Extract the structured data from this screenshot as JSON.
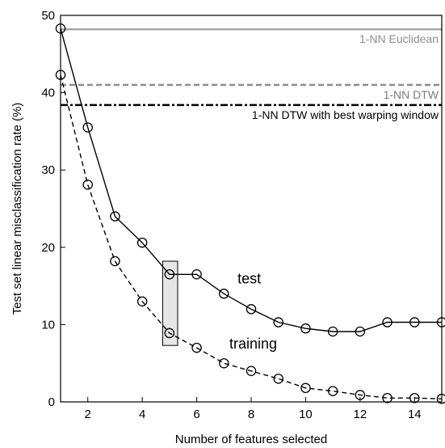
{
  "chart_data": {
    "type": "line",
    "xlabel": "Number of features selected",
    "ylabel": "Test set linear misclassification rate (%)",
    "xlim": [
      1,
      15
    ],
    "ylim": [
      0,
      50
    ],
    "xticks": [
      2,
      4,
      6,
      8,
      10,
      12,
      14
    ],
    "yticks": [
      0,
      10,
      20,
      30,
      40,
      50
    ],
    "grid": false,
    "series": [
      {
        "name": "test",
        "style": "solid",
        "marker": "open-circle",
        "color": "#000000",
        "x": [
          1,
          2,
          3,
          4,
          5,
          6,
          7,
          8,
          9,
          10,
          11,
          12,
          13,
          14,
          15
        ],
        "y": [
          48.3,
          35.5,
          24.0,
          20.6,
          16.5,
          16.5,
          14.0,
          12.0,
          10.3,
          9.5,
          9.1,
          9.1,
          10.3,
          10.3,
          10.3
        ]
      },
      {
        "name": "training",
        "style": "dashed",
        "marker": "open-circle",
        "color": "#000000",
        "x": [
          1,
          2,
          3,
          4,
          5,
          6,
          7,
          8,
          9,
          10,
          11,
          12,
          13,
          14,
          15
        ],
        "y": [
          42.3,
          28.1,
          18.2,
          13.0,
          8.9,
          7.0,
          5.0,
          4.0,
          3.0,
          1.8,
          1.4,
          0.9,
          0.5,
          0.5,
          0.4
        ]
      }
    ],
    "reference_lines": [
      {
        "label": "1-NN Euclidean",
        "y": 48.2,
        "style": "solid",
        "color": "#a8a8a8",
        "label_color": "#8c8c8c"
      },
      {
        "label": "1-NN DTW",
        "y": 41.0,
        "style": "dashed",
        "color": "#8c8c8c",
        "label_color": "#7a7a7a"
      },
      {
        "label": "1-NN DTW with best warping window",
        "y": 38.4,
        "style": "dashdot",
        "color": "#000000",
        "label_color": "#000000"
      }
    ],
    "highlight_box": {
      "x0": 4.75,
      "x1": 5.3,
      "y0": 7.3,
      "y1": 18.2,
      "fill": "#e6e6e6"
    },
    "annotations": [
      {
        "text": "test",
        "x": 7.5,
        "y": 15.3
      },
      {
        "text": "training",
        "x": 7.2,
        "y": 6.9
      }
    ]
  }
}
